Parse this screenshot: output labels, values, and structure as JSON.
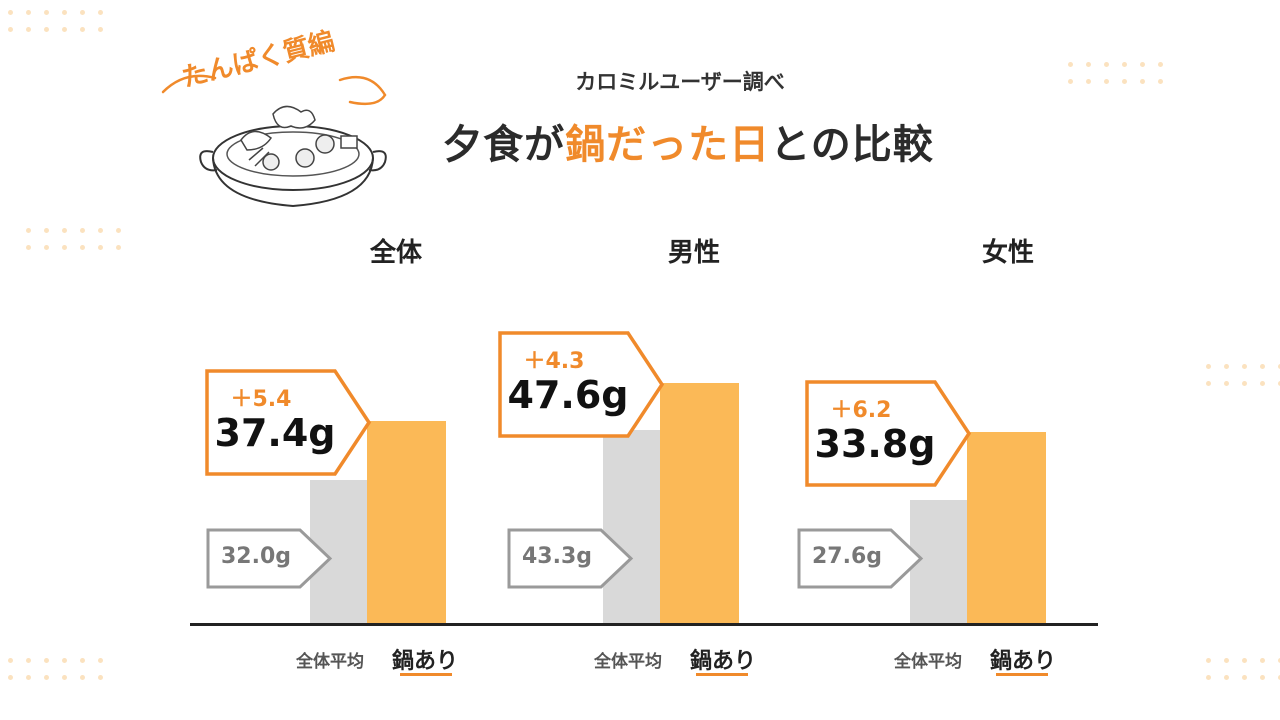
{
  "header": {
    "illustration_label": "たんぱく質編",
    "subtitle": "カロミルユーザー調べ",
    "title_prefix": "夕食が",
    "title_highlight": "鍋だった日",
    "title_suffix": "との比較"
  },
  "colors": {
    "accent": "#f08a2b",
    "nabe_bar": "#fbb957",
    "average_bar": "#d9d9d9",
    "dots": "#fbe2bf"
  },
  "chart_data": {
    "type": "bar",
    "unit": "g",
    "groups": [
      {
        "label": "全体",
        "average": 32.0,
        "nabe": 37.4,
        "average_label": "32.0g",
        "nabe_label": "37.4g",
        "diff_label": "＋5.4"
      },
      {
        "label": "男性",
        "average": 43.3,
        "nabe": 47.6,
        "average_label": "43.3g",
        "nabe_label": "47.6g",
        "diff_label": "＋4.3"
      },
      {
        "label": "女性",
        "average": 27.6,
        "nabe": 33.8,
        "average_label": "27.6g",
        "nabe_label": "33.8g",
        "diff_label": "＋6.2"
      }
    ],
    "series": [
      {
        "name": "全体平均"
      },
      {
        "name": "鍋あり"
      }
    ]
  }
}
